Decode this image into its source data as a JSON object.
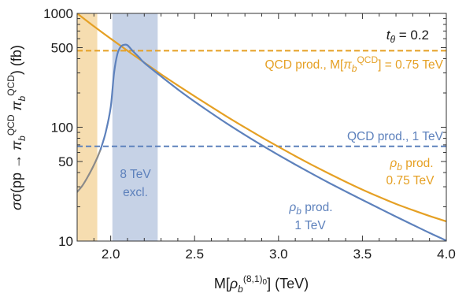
{
  "chart_data": {
    "type": "line",
    "title": "",
    "xlabel": {
      "prefix": "M[",
      "symbol": "ρ",
      "sub": "b",
      "sup": "(8,1)",
      "sup_sub": "0",
      "suffix": "] (TeV)"
    },
    "ylabel": {
      "prefix": "σ(pp → ",
      "pi1": "π",
      "pi1_sub": "b",
      "pi1_sup": "QCD",
      "pi2": "π",
      "pi2_sub": "b",
      "pi2_sup": "QCD",
      "suffix": ") (fb)"
    },
    "xlim": [
      1.8,
      4.0
    ],
    "ylim": [
      10,
      1000
    ],
    "yscale": "log",
    "x_ticks": [
      2.0,
      2.5,
      3.0,
      3.5,
      4.0
    ],
    "x_tick_labels": [
      "2.0",
      "2.5",
      "3.0",
      "3.5",
      "4.0"
    ],
    "y_ticks": [
      10,
      50,
      100,
      500,
      1000
    ],
    "y_tick_labels": [
      "10",
      "50",
      "100",
      "500",
      "1000"
    ],
    "colors": {
      "orange": "#E5A024",
      "blue": "#5D81BC",
      "gray": "#8a8a8a",
      "orange_band": "#F6DDB0",
      "blue_band": "#C6D2E6"
    },
    "bands": [
      {
        "name": "orange-band",
        "x0": 1.8,
        "x1": 1.92,
        "color_key": "orange_band"
      },
      {
        "name": "excluded-band",
        "x0": 2.01,
        "x1": 2.28,
        "color_key": "blue_band"
      }
    ],
    "hlines": [
      {
        "name": "qcd-075-line",
        "y": 470,
        "color_key": "orange"
      },
      {
        "name": "qcd-1-line",
        "y": 68,
        "color_key": "blue"
      }
    ],
    "series": [
      {
        "id": "rho_075",
        "color_key": "orange",
        "x": [
          1.8,
          1.9,
          2.0,
          2.1,
          2.2,
          2.3,
          2.4,
          2.5,
          2.6,
          2.7,
          2.8,
          2.9,
          3.0,
          3.1,
          3.2,
          3.3,
          3.4,
          3.5,
          3.6,
          3.7,
          3.8,
          3.9,
          4.0
        ],
        "y": [
          1000,
          770,
          600,
          470,
          370,
          292,
          233,
          187,
          151,
          122,
          99.5,
          81.5,
          67.3,
          55.8,
          46.6,
          39.2,
          33.2,
          28.3,
          24.4,
          21.2,
          18.7,
          16.6,
          14.9
        ]
      },
      {
        "id": "rho_1_extrapolated",
        "color_key": "gray",
        "x": [
          1.8,
          1.83,
          1.86,
          1.89,
          1.92,
          1.94
        ],
        "y": [
          27,
          30.5,
          36,
          43.5,
          54,
          64
        ]
      },
      {
        "id": "rho_1",
        "color_key": "blue",
        "x": [
          1.94,
          1.97,
          2.0,
          2.02,
          2.04,
          2.06,
          2.08,
          2.1,
          2.13,
          2.17,
          2.2,
          2.3,
          2.4,
          2.5,
          2.6,
          2.7,
          2.8,
          2.9,
          3.0,
          3.1,
          3.2,
          3.3,
          3.4,
          3.5,
          3.6,
          3.7,
          3.8,
          3.9,
          4.0
        ],
        "y": [
          64,
          90,
          150,
          300,
          440,
          510,
          530,
          525,
          470,
          410,
          368,
          280,
          215,
          168,
          133,
          106,
          85.5,
          69.5,
          57,
          47,
          39,
          32.5,
          27.3,
          23.0,
          19.4,
          16.4,
          13.9,
          11.8,
          10.1
        ]
      }
    ],
    "annotations": {
      "t_theta": {
        "t": "t",
        "sub": "θ",
        "rest": " = 0.2"
      },
      "qcd_075": {
        "text1": "QCD prod., M[",
        "pi": "π",
        "pi_sub": "b",
        "pi_sup": "QCD",
        "text2": "] = 0.75 TeV"
      },
      "qcd_1": "QCD prod., 1 TeV",
      "rho_075": {
        "symbol": "ρ",
        "sub": "b",
        "line1_rest": " prod.",
        "line2": "0.75 TeV"
      },
      "rho_1": {
        "symbol": "ρ",
        "sub": "b",
        "line1_rest": " prod.",
        "line2": "1 TeV"
      },
      "excl": {
        "line1": "8 TeV",
        "line2": "excl."
      }
    }
  }
}
